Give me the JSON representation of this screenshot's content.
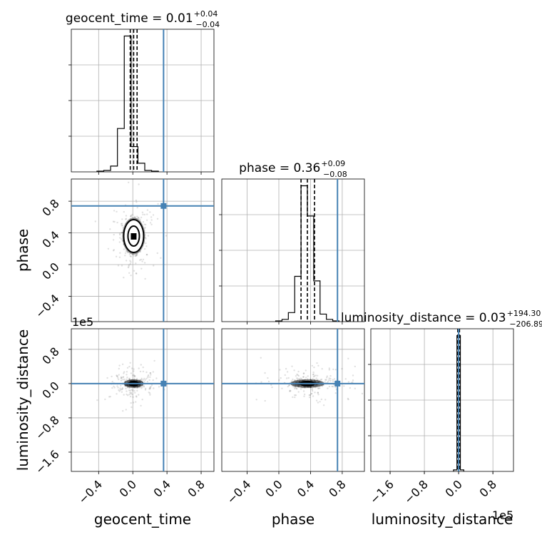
{
  "colors": {
    "truth": "#4682b4",
    "ink": "#000000",
    "grid": "#b0b0b0",
    "scatter": "#000000"
  },
  "chart_data": {
    "type": "corner",
    "parameters": [
      "geocent_time",
      "phase",
      "luminosity_distance"
    ],
    "axis_labels": [
      "geocent_time",
      "phase",
      "luminosity_distance"
    ],
    "offset_text": "1e5",
    "titles": [
      {
        "text": "geocent_time = 0.01",
        "sup": "+0.04",
        "sub": "−0.04"
      },
      {
        "text": "phase = 0.36",
        "sup": "+0.09",
        "sub": "−0.08"
      },
      {
        "text": "luminosity_distance = 0.03",
        "sup": "+194.30",
        "sub": "−206.89"
      }
    ],
    "ranges": [
      [
        -0.72,
        0.95
      ],
      [
        -0.72,
        1.08
      ],
      [
        -2.05,
        1.28
      ]
    ],
    "ticks": [
      {
        "values": [
          -0.4,
          0.0,
          0.4,
          0.8
        ],
        "labels": [
          "−0.4",
          "0.0",
          "0.4",
          "0.8"
        ]
      },
      {
        "values": [
          -0.4,
          0.0,
          0.4,
          0.8
        ],
        "labels": [
          "−0.4",
          "0.0",
          "0.4",
          "0.8"
        ]
      },
      {
        "values": [
          -1.6,
          -0.8,
          0.0,
          0.8
        ],
        "labels": [
          "−1.6",
          "−0.8",
          "0.0",
          "0.8"
        ]
      }
    ],
    "truths": [
      0.36,
      0.74,
      0.0
    ],
    "quantiles": [
      [
        -0.03,
        0.01,
        0.05
      ],
      [
        0.28,
        0.36,
        0.45
      ],
      [
        -0.02,
        0.0,
        0.02
      ]
    ],
    "histograms": [
      {
        "edges": [
          -0.42,
          -0.34,
          -0.26,
          -0.18,
          -0.1,
          -0.02,
          0.06,
          0.14,
          0.22,
          0.3
        ],
        "counts": [
          1,
          2,
          8,
          60,
          188,
          35,
          12,
          2,
          1
        ]
      },
      {
        "edges": [
          -0.04,
          0.04,
          0.12,
          0.2,
          0.28,
          0.36,
          0.44,
          0.52,
          0.6,
          0.68,
          0.76
        ],
        "counts": [
          1,
          3,
          12,
          60,
          180,
          140,
          54,
          10,
          3,
          1
        ]
      },
      {
        "edges": [
          -0.12,
          -0.04,
          0.04,
          0.12
        ],
        "counts": [
          2,
          180,
          2
        ]
      }
    ],
    "grid": true
  }
}
